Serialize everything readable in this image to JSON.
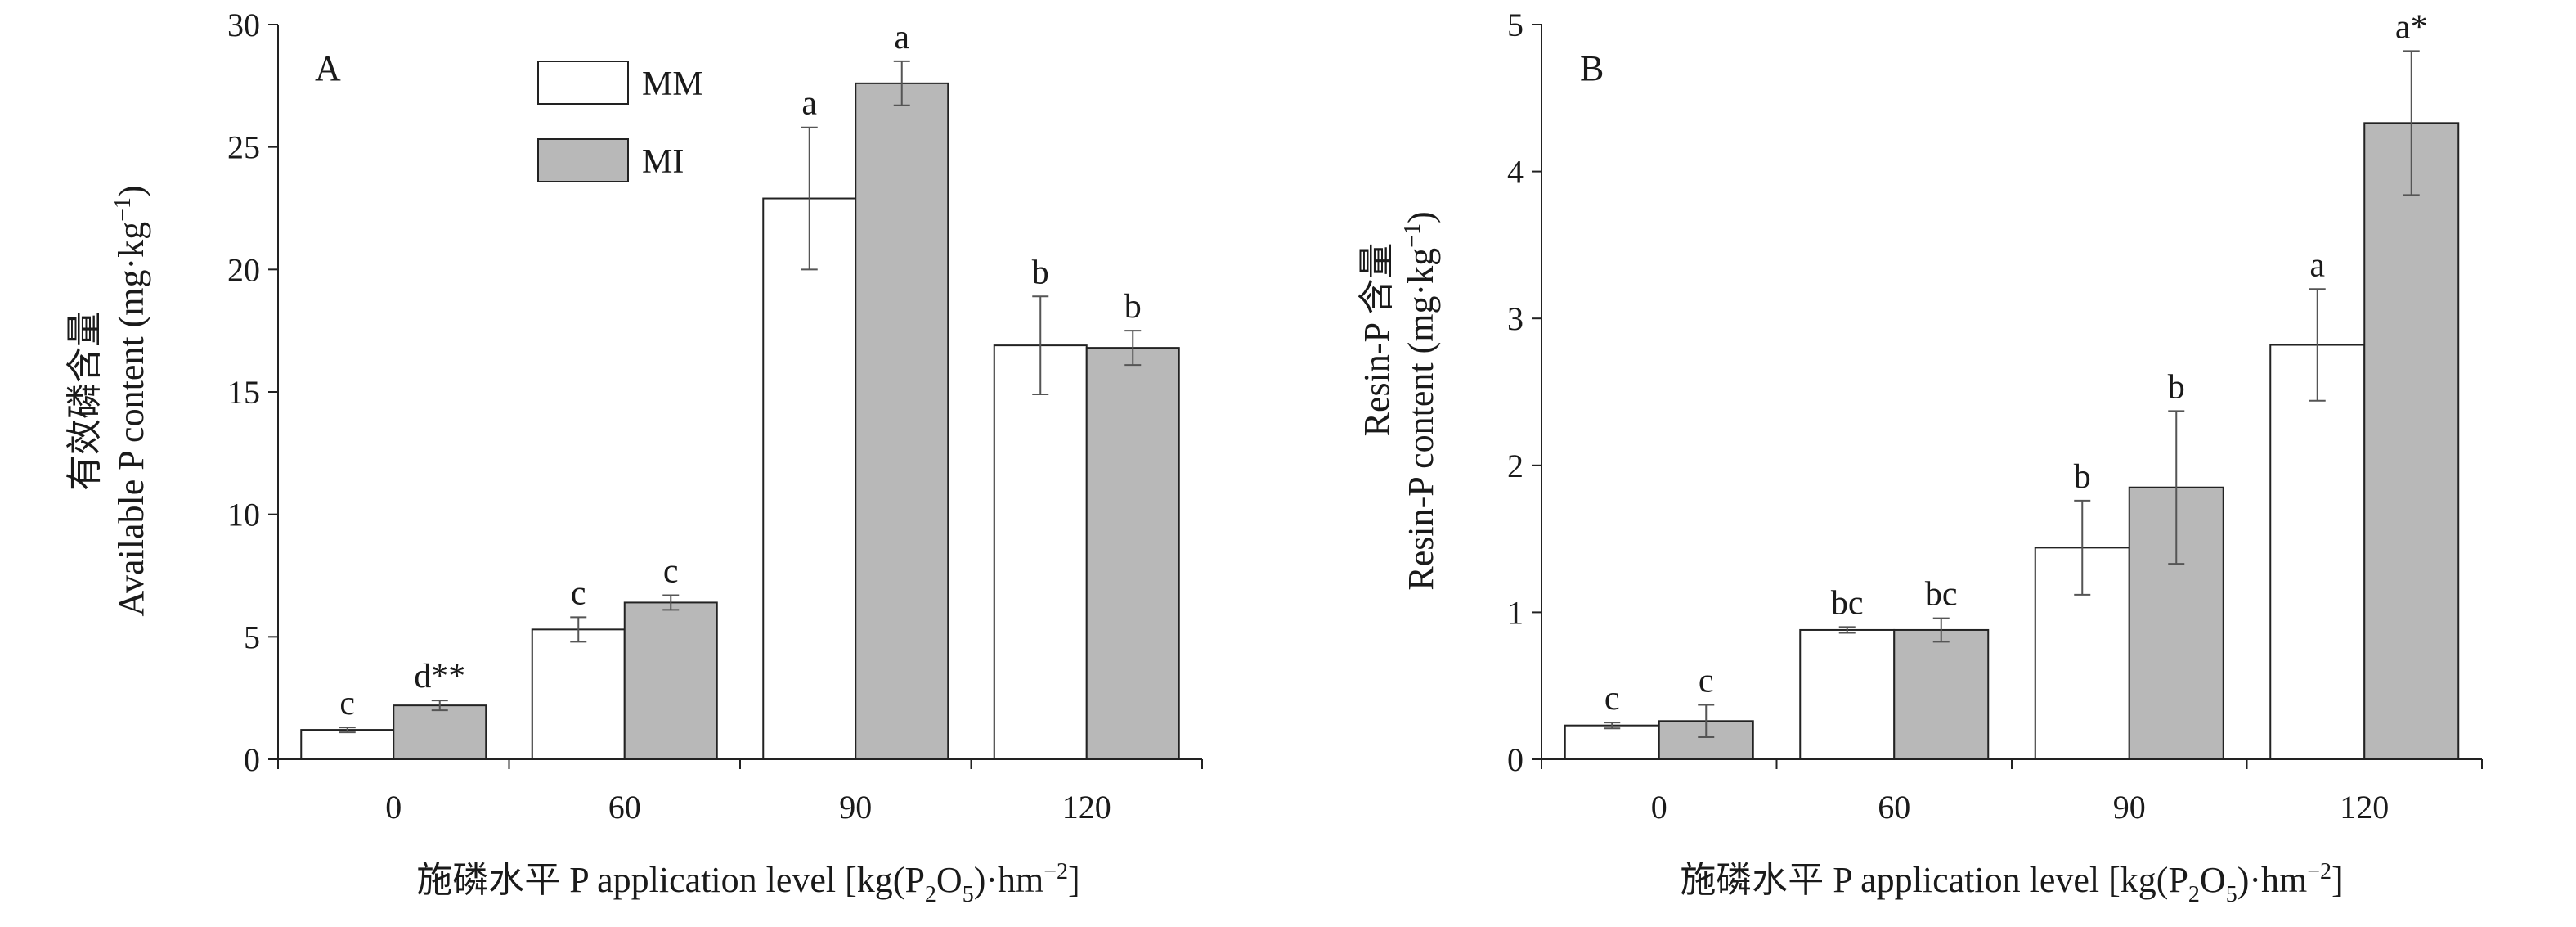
{
  "colors": {
    "MM": "#ffffff",
    "MI": "#b8b8b8",
    "axis": "#222222",
    "errorbar": "#555555"
  },
  "legend": [
    {
      "key": "MM",
      "label": "MM"
    },
    {
      "key": "MI",
      "label": "MI"
    }
  ],
  "chart_data": [
    {
      "type": "bar",
      "panel_label": "A",
      "categories": [
        "0",
        "60",
        "90",
        "120"
      ],
      "ylim": [
        0,
        30
      ],
      "yticks": [
        0,
        5,
        10,
        15,
        20,
        25,
        30
      ],
      "ylabel_cn": "有效磷含量",
      "ylabel_en": "Available P content (mg·kg",
      "ylabel_sup": "−1",
      "ylabel_close": ")",
      "xlabel_pre": "施磷水平 P application level [kg(P",
      "xlabel_sub1": "2",
      "xlabel_mid": "O",
      "xlabel_sub2": "5",
      "xlabel_post": ")·hm",
      "xlabel_sup": "−2",
      "xlabel_close": "]",
      "legend_placement": "top-left",
      "series": [
        {
          "name": "MM",
          "values": [
            1.2,
            5.3,
            22.9,
            16.9
          ],
          "errors": [
            0.1,
            0.5,
            2.9,
            2.0
          ],
          "labels": [
            "c",
            "c",
            "a",
            "b"
          ]
        },
        {
          "name": "MI",
          "values": [
            2.2,
            6.4,
            27.6,
            16.8
          ],
          "errors": [
            0.2,
            0.3,
            0.9,
            0.7
          ],
          "labels": [
            "d**",
            "c",
            "a",
            "b"
          ]
        }
      ]
    },
    {
      "type": "bar",
      "panel_label": "B",
      "categories": [
        "0",
        "60",
        "90",
        "120"
      ],
      "ylim": [
        0,
        5
      ],
      "yticks": [
        0,
        1,
        2,
        3,
        4,
        5
      ],
      "ylabel_cn": "Resin-P 含量",
      "ylabel_en": "Resin-P content (mg·kg",
      "ylabel_sup": "−1",
      "ylabel_close": ")",
      "xlabel_pre": "施磷水平 P application level [kg(P",
      "xlabel_sub1": "2",
      "xlabel_mid": "O",
      "xlabel_sub2": "5",
      "xlabel_post": ")·hm",
      "xlabel_sup": "−2",
      "xlabel_close": "]",
      "series": [
        {
          "name": "MM",
          "values": [
            0.23,
            0.88,
            1.44,
            2.82
          ],
          "errors": [
            0.02,
            0.02,
            0.32,
            0.38
          ],
          "labels": [
            "c",
            "bc",
            "b",
            "a"
          ]
        },
        {
          "name": "MI",
          "values": [
            0.26,
            0.88,
            1.85,
            4.33
          ],
          "errors": [
            0.11,
            0.08,
            0.52,
            0.49
          ],
          "labels": [
            "c",
            "bc",
            "b",
            "a*"
          ]
        }
      ]
    }
  ]
}
